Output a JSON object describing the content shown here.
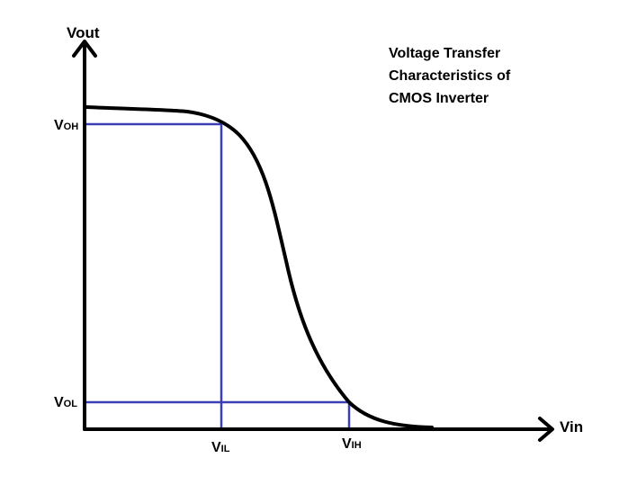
{
  "title_lines": [
    "Voltage Transfer",
    "Characteristics of",
    "CMOS Inverter"
  ],
  "axes": {
    "y_label": "Vout",
    "x_label": "Vin"
  },
  "levels": {
    "voh": {
      "main": "V",
      "sub": "OH"
    },
    "vol": {
      "main": "V",
      "sub": "OL"
    },
    "vil": {
      "main": "V",
      "sub": "IL"
    },
    "vih": {
      "main": "V",
      "sub": "IH"
    }
  },
  "colors": {
    "curve": "#000000",
    "axes": "#000000",
    "guides": "#3a3fb5"
  },
  "icons": {
    "y_arrow": "arrow-up-icon",
    "x_arrow": "arrow-right-icon"
  }
}
